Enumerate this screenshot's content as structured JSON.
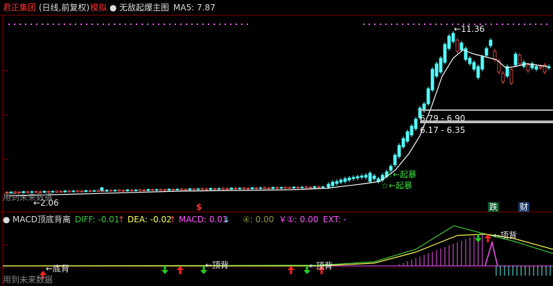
{
  "header": {
    "stock_name": "君正集团",
    "period": "(日线,前复权)",
    "sim_label": "模拟",
    "formula": "无敌起爆主图",
    "ma5": "MA5: 7.87"
  },
  "main": {
    "high_label": "11.36",
    "low_label": "2.06",
    "zone1": "6.79 - 6.90",
    "zone2": "6.17 - 6.35",
    "signal1": "☆←起暴",
    "signal2": "☆←起暴",
    "ghost_text": "用到未来数据",
    "dollar": "$",
    "die_badge": "跌",
    "cai_badge": "财"
  },
  "indicator": {
    "name": "MACD顶底背离",
    "diff": "DIFF: -0.01",
    "dea": "DEA: -0.02",
    "macd": "MACD: 0.01",
    "four": "④: 0.00",
    "yen": "￥①: 0.00",
    "ext": "EXT: -",
    "bottom_div": "←底背",
    "top_div1": "←顶背",
    "top_div2": "←顶背",
    "top_div3": "←项背",
    "future_text": "用到未来数据"
  },
  "colors": {
    "up": "#ff5555",
    "down": "#54ffff",
    "ma": "#ffffff",
    "diff": "#ffff55",
    "dea": "#3cc83c",
    "grid": "#8b0000",
    "magenta": "#ff55ff"
  }
}
